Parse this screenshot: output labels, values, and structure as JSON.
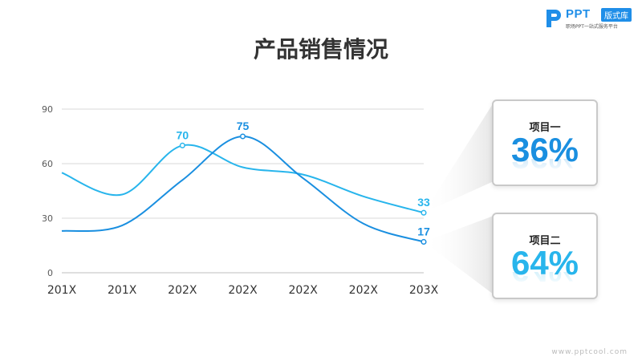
{
  "brand": {
    "name": "PPT",
    "tag": "版式库",
    "subtitle": "职场PPT一站式服务平台",
    "watermark": "www.pptcool.com",
    "color": "#1f8ee8"
  },
  "chart_data": {
    "type": "line",
    "title": "产品销售情况",
    "xlabel": "",
    "ylabel": "",
    "categories": [
      "201X",
      "201X",
      "202X",
      "202X",
      "202X",
      "202X",
      "203X"
    ],
    "yticks": [
      0,
      30,
      60,
      90
    ],
    "ylim": [
      0,
      90
    ],
    "grid": true,
    "series": [
      {
        "color": "#28b5ec",
        "values": [
          55,
          43,
          70,
          58,
          54,
          42,
          33
        ],
        "labels": [
          null,
          null,
          "70",
          null,
          null,
          null,
          "33"
        ]
      },
      {
        "color": "#1a8fe0",
        "values": [
          23,
          26,
          51,
          75,
          52,
          27,
          17
        ],
        "labels": [
          null,
          null,
          null,
          "75",
          null,
          null,
          "17"
        ]
      }
    ]
  },
  "cards": [
    {
      "label": "项目一",
      "value": "36%",
      "color": "#1a8fe0"
    },
    {
      "label": "项目二",
      "value": "64%",
      "color": "#28b5ec"
    }
  ]
}
